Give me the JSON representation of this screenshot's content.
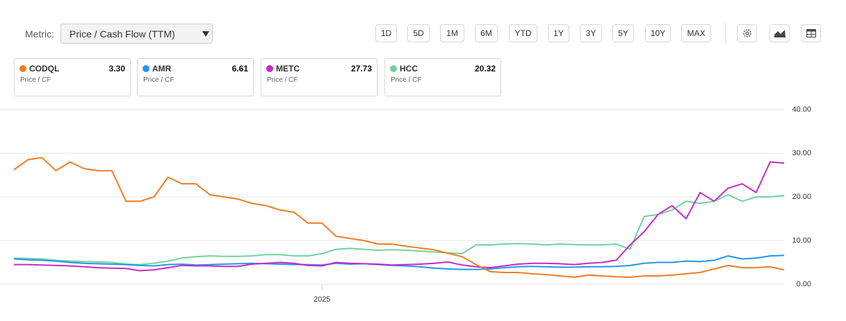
{
  "metric": {
    "label": "Metric:",
    "selected": "Price / Cash Flow (TTM)"
  },
  "ranges": [
    "1D",
    "5D",
    "1M",
    "6M",
    "YTD",
    "1Y",
    "3Y",
    "5Y",
    "10Y",
    "MAX"
  ],
  "cards": [
    {
      "value": "3.30",
      "subtitle": "Price / CF"
    },
    {
      "value": "6.61",
      "subtitle": "Price / CF"
    },
    {
      "value": "27.73",
      "subtitle": "Price / CF"
    },
    {
      "value": "20.32",
      "subtitle": "Price / CF"
    }
  ],
  "chart_data": {
    "type": "line",
    "categories": [
      null,
      null,
      null,
      null,
      null,
      null,
      null,
      null,
      null,
      null,
      null,
      null,
      null,
      null,
      null,
      null,
      null,
      null,
      null,
      null,
      null,
      null,
      "2025",
      null,
      null,
      null,
      null,
      null,
      null,
      null,
      null,
      null,
      null,
      null,
      null,
      null,
      null,
      null,
      null,
      null,
      null,
      null,
      null,
      null,
      null,
      null,
      null,
      null,
      null,
      null,
      null,
      null,
      null,
      null,
      null,
      null
    ],
    "series": [
      {
        "name": "CODQL",
        "color": "#f47b20",
        "values": [
          26.2,
          28.5,
          29,
          26,
          28,
          26.5,
          26,
          26,
          19,
          19,
          20,
          24.5,
          23,
          23,
          20.5,
          20,
          19.5,
          18.5,
          18,
          17,
          16.5,
          14,
          14,
          11,
          10.5,
          10,
          9.2,
          9.2,
          8.7,
          8.3,
          7.9,
          7.1,
          6.3,
          4.5,
          2.9,
          2.7,
          2.7,
          2.4,
          2.2,
          1.9,
          1.6,
          2.1,
          1.9,
          1.7,
          1.6,
          1.9,
          1.9,
          2.1,
          2.4,
          2.7,
          3.5,
          4.3,
          3.8,
          3.8,
          4,
          3.3
        ]
      },
      {
        "name": "AMR",
        "color": "#2196f3",
        "values": [
          5.8,
          5.6,
          5.5,
          5.3,
          5.0,
          4.8,
          4.7,
          4.6,
          4.5,
          4.3,
          4.2,
          4.5,
          4.6,
          4.4,
          4.5,
          4.6,
          4.7,
          4.8,
          4.7,
          4.6,
          4.5,
          4.5,
          4.4,
          4.8,
          4.6,
          4.7,
          4.5,
          4.3,
          4.2,
          4.0,
          3.7,
          3.5,
          3.4,
          3.4,
          3.5,
          3.8,
          4.0,
          4.1,
          4.0,
          3.9,
          3.9,
          4.0,
          4.0,
          4.1,
          4.3,
          4.8,
          5.0,
          5.0,
          5.3,
          5.2,
          5.5,
          6.5,
          5.8,
          6.0,
          6.5,
          6.61
        ]
      },
      {
        "name": "METC",
        "color": "#c72ac7",
        "values": [
          4.5,
          4.5,
          4.4,
          4.3,
          4.2,
          4.0,
          3.8,
          3.7,
          3.6,
          3.1,
          3.3,
          3.8,
          4.3,
          4.2,
          4.2,
          4.1,
          4.1,
          4.6,
          4.8,
          5.0,
          4.8,
          4.3,
          4.2,
          5.0,
          4.8,
          4.7,
          4.6,
          4.4,
          4.5,
          4.6,
          4.8,
          5.1,
          4.4,
          4.0,
          3.8,
          4.2,
          4.6,
          4.8,
          4.8,
          4.7,
          4.5,
          4.8,
          5.0,
          5.5,
          9,
          12,
          16,
          18,
          15,
          21,
          19,
          22,
          23,
          21,
          28,
          27.73
        ]
      },
      {
        "name": "HCC",
        "color": "#6ed39a",
        "values": [
          6.0,
          5.9,
          5.8,
          5.5,
          5.3,
          5.2,
          5.1,
          5.0,
          4.6,
          4.5,
          4.8,
          5.3,
          6.0,
          6.3,
          6.5,
          6.4,
          6.4,
          6.5,
          6.8,
          6.8,
          6.5,
          6.5,
          7.0,
          8.0,
          8.2,
          8.0,
          7.8,
          7.9,
          7.8,
          7.6,
          7.4,
          7.2,
          7.0,
          9.0,
          9.0,
          9.2,
          9.3,
          9.2,
          9.0,
          9.2,
          9.1,
          9.0,
          9.0,
          9.2,
          8.0,
          15.5,
          16,
          17,
          19,
          18.5,
          19,
          20.5,
          19,
          20,
          20,
          20.32
        ]
      }
    ],
    "ylim": [
      0,
      40
    ],
    "yticks": [
      {
        "value": 0,
        "label": "0.00"
      },
      {
        "value": 10,
        "label": "10.00"
      },
      {
        "value": 20,
        "label": "20.00"
      },
      {
        "value": 30,
        "label": "30.00"
      },
      {
        "value": 40,
        "label": "40.00"
      }
    ],
    "grid": true
  }
}
